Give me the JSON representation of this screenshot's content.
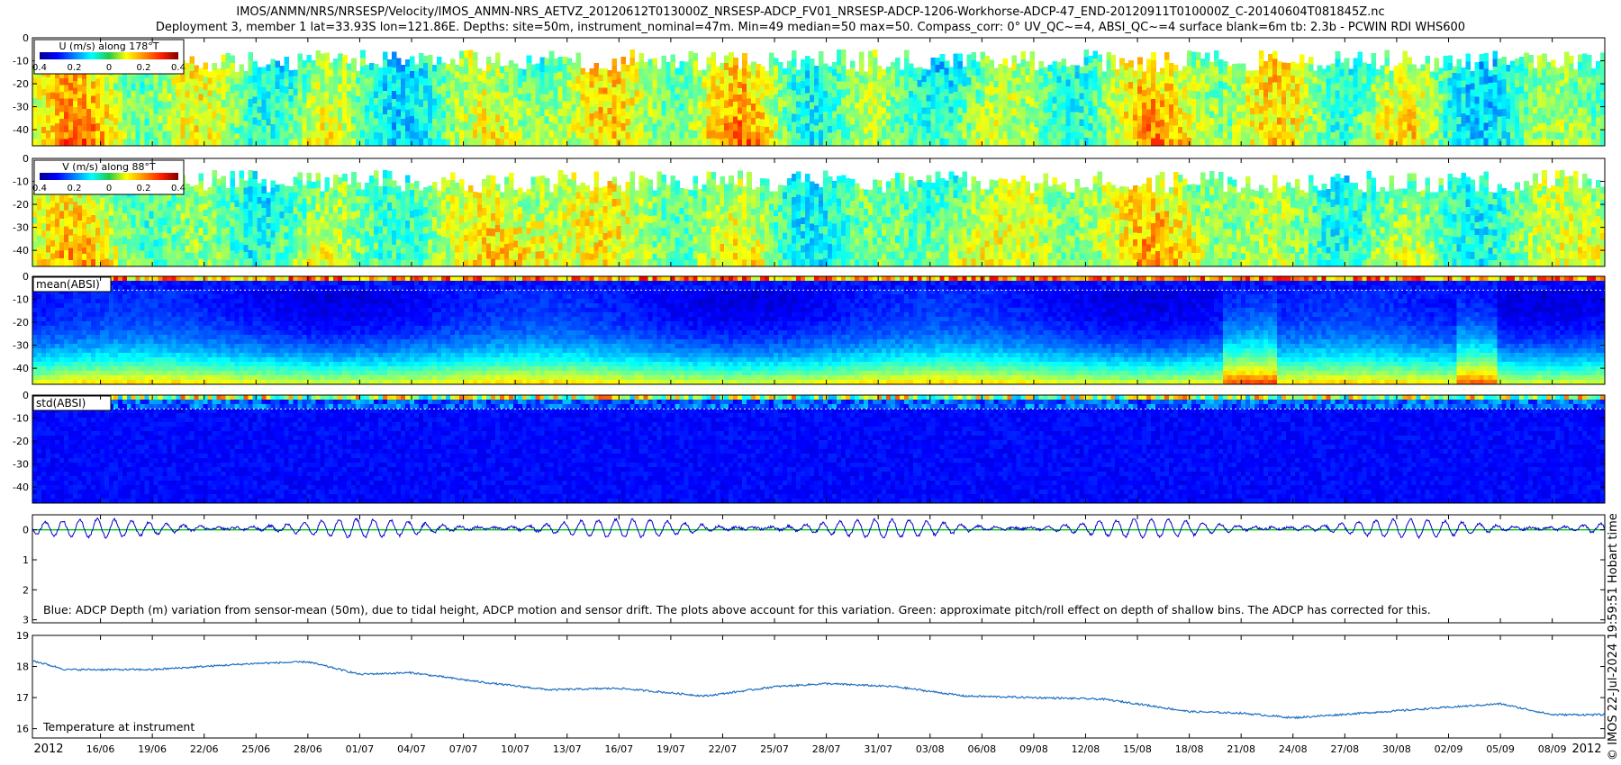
{
  "title_line1": "IMOS/ANMN/NRS/NRSESP/Velocity/IMOS_ANMN-NRS_AETVZ_20120612T013000Z_NRSESP-ADCP_FV01_NRSESP-ADCP-1206-Workhorse-ADCP-47_END-20120911T010000Z_C-20140604T081845Z.nc",
  "title_line2": "Deployment 3, member 1 lat=33.93S lon=121.86E. Depths: site=50m, instrument_nominal=47m. Min=49 median=50 max=50. Compass_corr: 0° UV_QC~=4, ABSI_QC~=4 surface blank=6m tb: 2.3b - PCWIN RDI WHS600",
  "side_note": "© IMOS 22-Jul-2024 19:59:51 Hobart time",
  "colors": {
    "depth_line": "#0000cc",
    "pitch_roll_line": "#00cc00",
    "temp_line": "#1f6fc0"
  },
  "chart_data": [
    {
      "type": "heatmap",
      "label": "U (m/s) along 178°T",
      "colorbar_ticks": [
        "0.4",
        "0.2",
        "0",
        "0.2",
        "0.4"
      ],
      "colorbar_range": [
        -0.4,
        0.4
      ],
      "colormap": "jet",
      "yticks": [
        "0",
        "-10",
        "-20",
        "-30",
        "-40"
      ],
      "ylim": [
        -47,
        0
      ]
    },
    {
      "type": "heatmap",
      "label": "V (m/s) along 88°T",
      "colorbar_ticks": [
        "0.4",
        "0.2",
        "0",
        "0.2",
        "0.4"
      ],
      "colorbar_range": [
        -0.4,
        0.4
      ],
      "colormap": "jet",
      "yticks": [
        "0",
        "-10",
        "-20",
        "-30",
        "-40"
      ],
      "ylim": [
        -47,
        0
      ]
    },
    {
      "type": "heatmap",
      "label": "mean(ABSI)",
      "colormap": "jet",
      "yticks": [
        "0",
        "-10",
        "-20",
        "-30",
        "-40"
      ],
      "ylim": [
        -47,
        0
      ]
    },
    {
      "type": "heatmap",
      "label": "std(ABSI)",
      "colormap": "jet",
      "yticks": [
        "0",
        "-10",
        "-20",
        "-30",
        "-40"
      ],
      "ylim": [
        -47,
        0
      ]
    },
    {
      "type": "line",
      "annotation": "Blue: ADCP Depth (m) variation from sensor-mean (50m), due to tidal height, ADCP motion and sensor drift. The plots above account for this variation. Green: approximate pitch/roll effect on depth of shallow bins. The ADCP has corrected for this.",
      "yticks": [
        "0",
        "1",
        "2",
        "3"
      ],
      "ylim": [
        -0.5,
        3.1
      ],
      "series": [
        {
          "name": "Blue",
          "baseline": 0,
          "tidal_amplitude": 0.3
        },
        {
          "name": "Green",
          "value": 0
        }
      ]
    },
    {
      "type": "line",
      "annotation": "Temperature at instrument",
      "yticks": [
        "19",
        "18",
        "17",
        "16"
      ],
      "ylim": [
        15.7,
        19
      ],
      "series": [
        {
          "dates": [
            "2012-06-12",
            "2012-06-14",
            "2012-06-19",
            "2012-06-25",
            "2012-06-28",
            "2012-07-01",
            "2012-07-04",
            "2012-07-08",
            "2012-07-12",
            "2012-07-16",
            "2012-07-21",
            "2012-07-25",
            "2012-07-28",
            "2012-08-01",
            "2012-08-05",
            "2012-08-09",
            "2012-08-13",
            "2012-08-15",
            "2012-08-18",
            "2012-08-21",
            "2012-08-24",
            "2012-08-28",
            "2012-09-01",
            "2012-09-05",
            "2012-09-08",
            "2012-09-11"
          ],
          "values": [
            18.2,
            17.9,
            17.9,
            18.1,
            18.15,
            17.75,
            17.8,
            17.5,
            17.25,
            17.3,
            17.05,
            17.35,
            17.45,
            17.35,
            17.05,
            17.0,
            16.95,
            16.8,
            16.55,
            16.5,
            16.35,
            16.5,
            16.65,
            16.8,
            16.45,
            16.45
          ]
        }
      ]
    }
  ],
  "time_axis": {
    "start": "2012-06-12T01:30",
    "end": "2012-09-11T01:00",
    "tick_labels": [
      "2012",
      "16/06",
      "19/06",
      "22/06",
      "25/06",
      "28/06",
      "01/07",
      "04/07",
      "07/07",
      "10/07",
      "13/07",
      "16/07",
      "19/07",
      "22/07",
      "25/07",
      "28/07",
      "31/07",
      "03/08",
      "06/08",
      "09/08",
      "12/08",
      "15/08",
      "18/08",
      "21/08",
      "24/08",
      "27/08",
      "30/08",
      "02/09",
      "05/09",
      "08/09",
      "2012"
    ]
  }
}
